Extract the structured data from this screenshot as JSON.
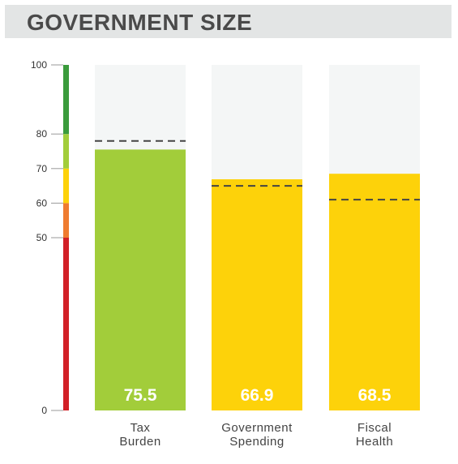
{
  "header": {
    "title": "GOVERNMENT SIZE"
  },
  "chart_data": {
    "type": "bar",
    "categories": [
      [
        "Tax",
        "Burden"
      ],
      [
        "Government",
        "Spending"
      ],
      [
        "Fiscal",
        "Health"
      ]
    ],
    "values": [
      75.5,
      66.9,
      68.5
    ],
    "value_labels": [
      "75.5",
      "66.9",
      "68.5"
    ],
    "reference_values": [
      78,
      65,
      61
    ],
    "bar_colors": [
      "#a2cd3a",
      "#fdd20a",
      "#fdd20a"
    ],
    "background_bar_color": "#f4f6f6",
    "reference_line_color": "#444444",
    "ylim": [
      0,
      100
    ],
    "yticks": [
      0,
      50,
      60,
      70,
      80,
      100
    ],
    "ytick_labels": [
      "0",
      "50",
      "60",
      "70",
      "80",
      "100"
    ],
    "scale_bands": [
      {
        "from": 0,
        "to": 50,
        "color": "#d22027"
      },
      {
        "from": 50,
        "to": 60,
        "color": "#ef7c30"
      },
      {
        "from": 60,
        "to": 70,
        "color": "#fdd20a"
      },
      {
        "from": 70,
        "to": 80,
        "color": "#a2cd3a"
      },
      {
        "from": 80,
        "to": 100,
        "color": "#3a9b3c"
      }
    ],
    "title": "GOVERNMENT SIZE",
    "xlabel": "",
    "ylabel": "",
    "grid": false
  }
}
